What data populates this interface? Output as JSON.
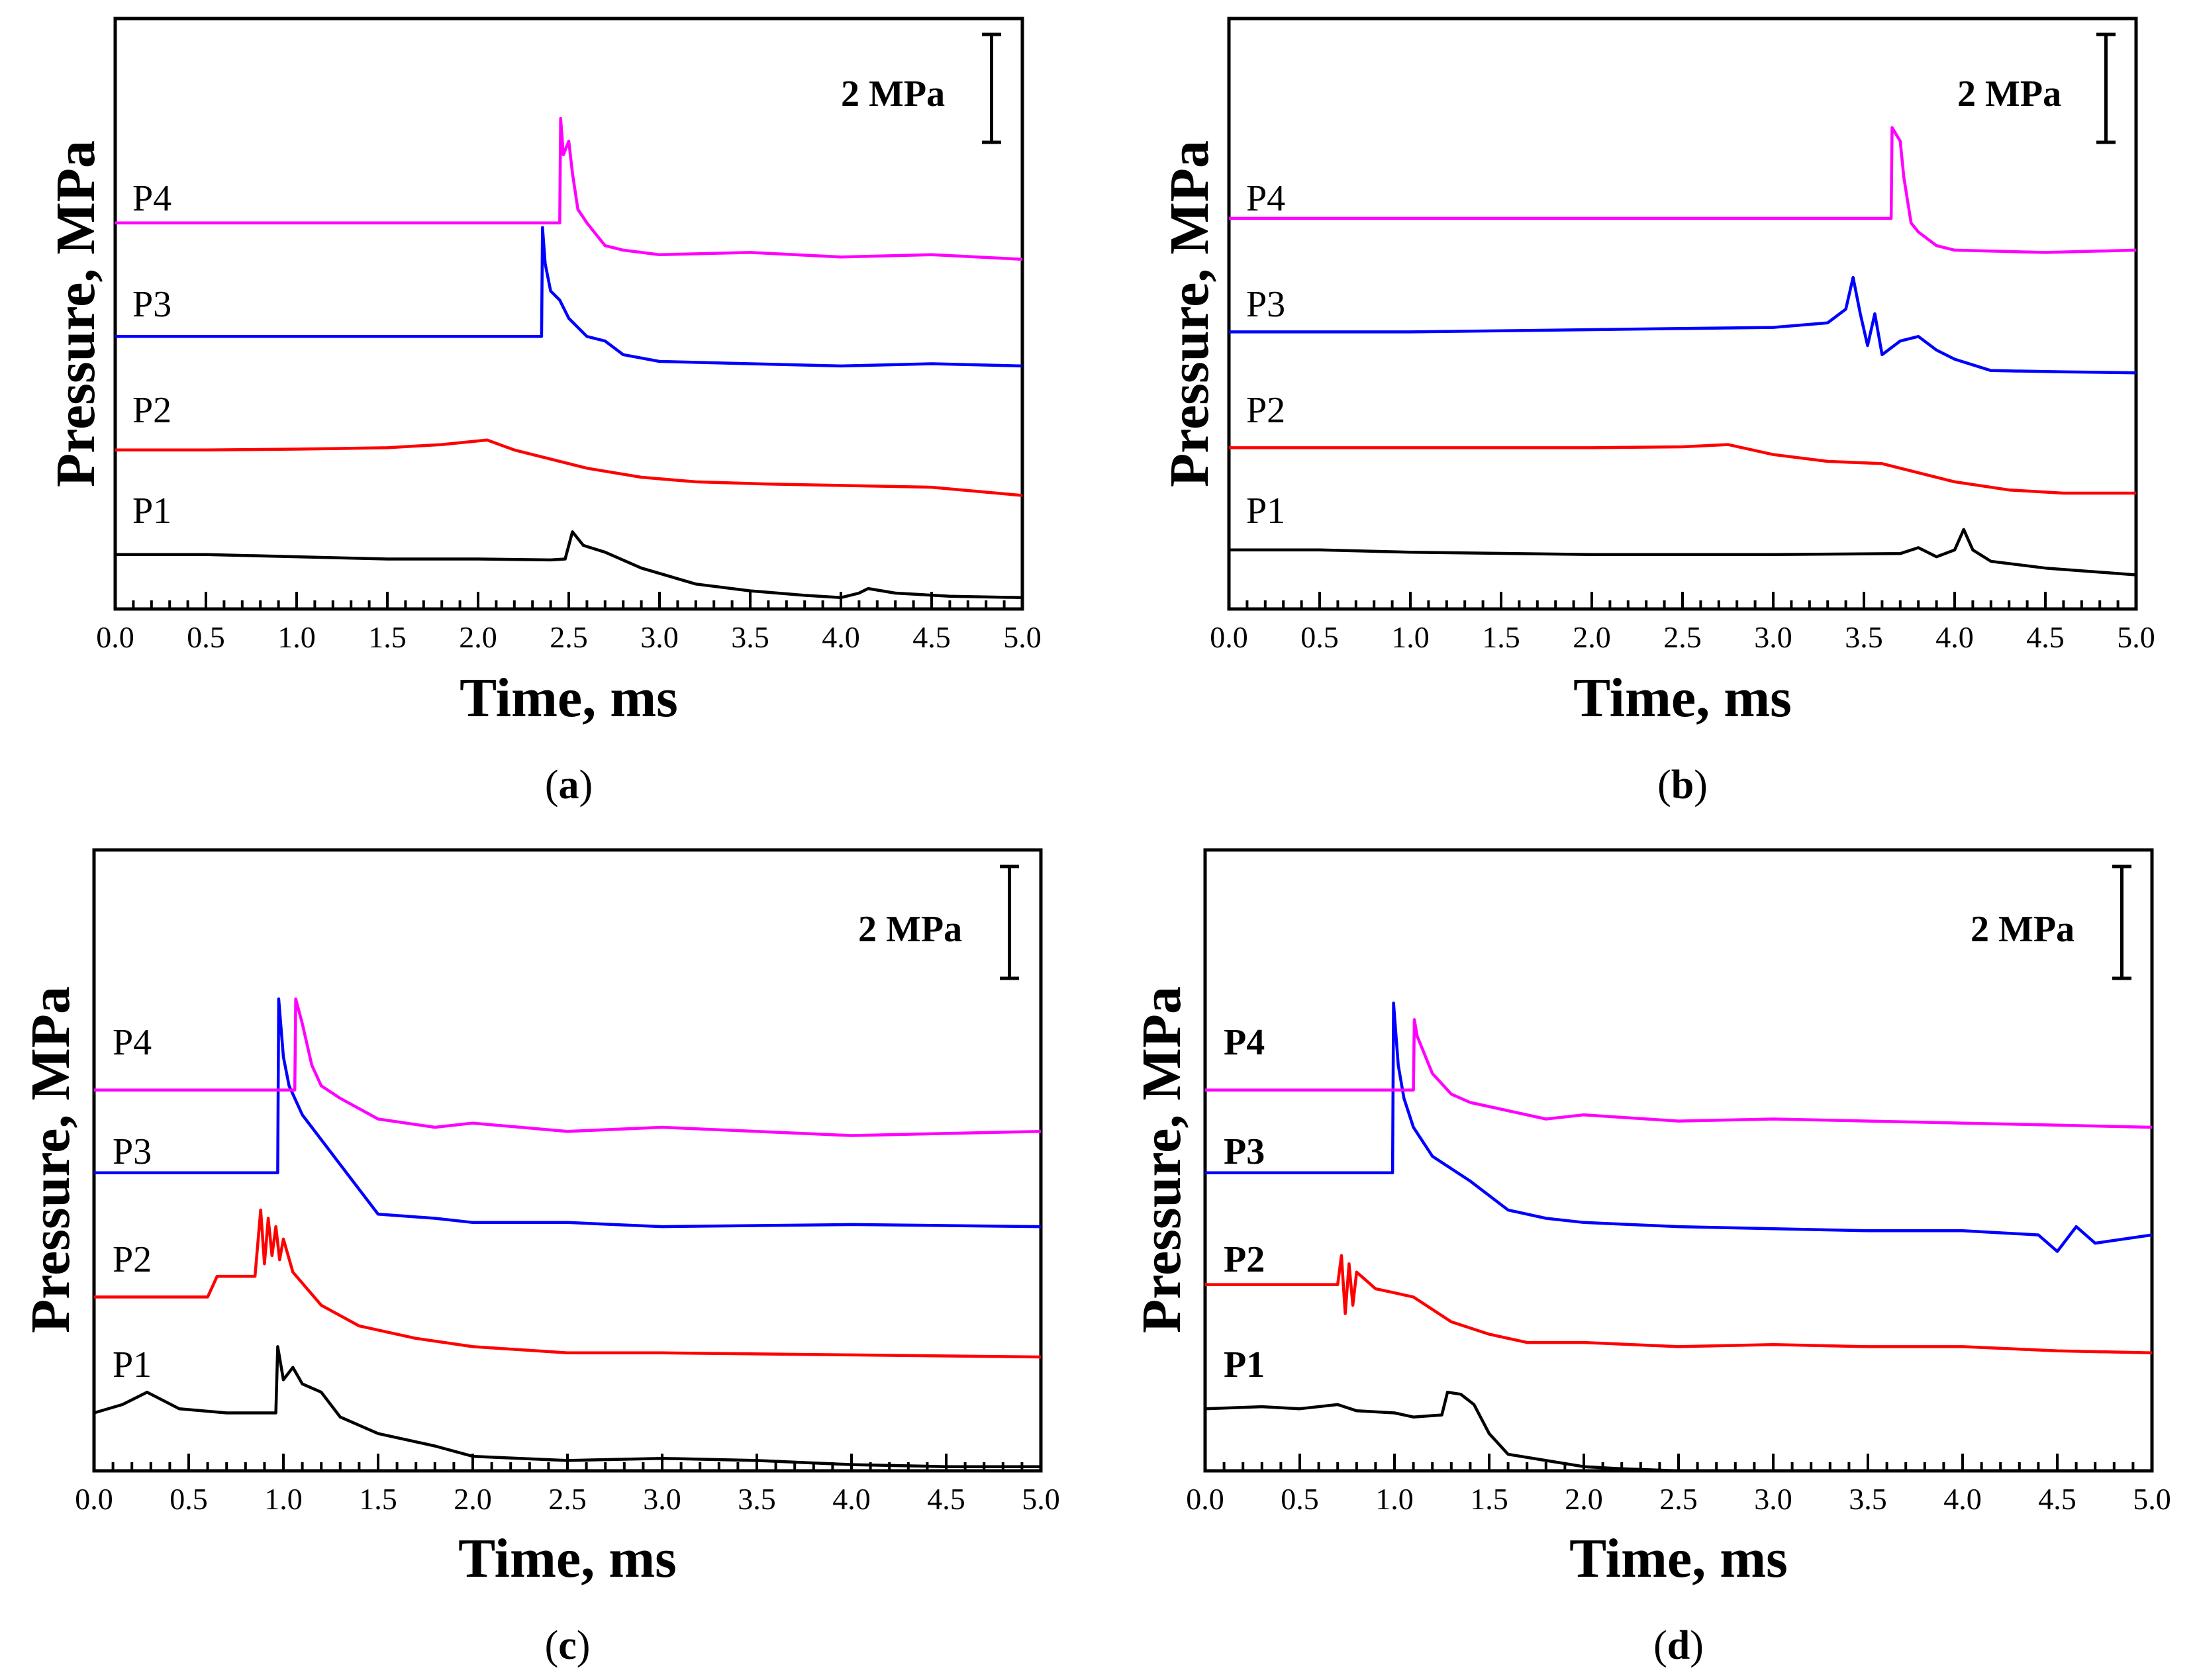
{
  "figure": {
    "colors": {
      "P1": "#000000",
      "P2": "#ff0000",
      "P3": "#0000ff",
      "P4": "#ff00ff"
    },
    "panels": [
      {
        "id": "a",
        "label_open": "(",
        "label_letter": "a",
        "label_close": ")",
        "ylabel": "Pressure, MPa",
        "xlabel": "Time, ms",
        "scale_bar": "2 MPa",
        "labels_bold": false,
        "xticks": [
          "0.0",
          "0.5",
          "1.0",
          "1.5",
          "2.0",
          "2.5",
          "3.0",
          "3.5",
          "4.0",
          "4.5",
          "5.0"
        ]
      },
      {
        "id": "b",
        "label_open": "(",
        "label_letter": "b",
        "label_close": ")",
        "ylabel": "Pressure, MPa",
        "xlabel": "Time, ms",
        "scale_bar": "2 MPa",
        "labels_bold": false,
        "xticks": [
          "0.0",
          "0.5",
          "1.0",
          "1.5",
          "2.0",
          "2.5",
          "3.0",
          "3.5",
          "4.0",
          "4.5",
          "5.0"
        ]
      },
      {
        "id": "c",
        "label_open": "(",
        "label_letter": "c",
        "label_close": ")",
        "ylabel": "Pressure, MPa",
        "xlabel": "Time, ms",
        "scale_bar": "2 MPa",
        "labels_bold": false,
        "xticks": [
          "0.0",
          "0.5",
          "1.0",
          "1.5",
          "2.0",
          "2.5",
          "3.0",
          "3.5",
          "4.0",
          "4.5",
          "5.0"
        ]
      },
      {
        "id": "d",
        "label_open": "(",
        "label_letter": "d",
        "label_close": ")",
        "ylabel": "Pressure, MPa",
        "xlabel": "Time, ms",
        "scale_bar": "2 MPa",
        "labels_bold": true,
        "xticks": [
          "0.0",
          "0.5",
          "1.0",
          "1.5",
          "2.0",
          "2.5",
          "3.0",
          "3.5",
          "4.0",
          "4.5",
          "5.0"
        ]
      }
    ]
  },
  "chart_data": [
    {
      "type": "line",
      "panel": "a",
      "xlabel": "Time, ms",
      "ylabel": "Pressure, MPa",
      "xlim": [
        0,
        5
      ],
      "ylim": [
        0,
        13
      ],
      "scale_bar_MPa": 2,
      "series": [
        {
          "name": "P1",
          "x": [
            0,
            0.5,
            1.0,
            1.5,
            2.0,
            2.4,
            2.48,
            2.52,
            2.58,
            2.7,
            2.9,
            3.2,
            3.5,
            3.8,
            4.0,
            4.1,
            4.15,
            4.3,
            4.6,
            5.0
          ],
          "y": [
            1.2,
            1.2,
            1.15,
            1.1,
            1.1,
            1.08,
            1.1,
            1.7,
            1.4,
            1.25,
            0.9,
            0.55,
            0.4,
            0.3,
            0.25,
            0.35,
            0.45,
            0.35,
            0.28,
            0.25
          ]
        },
        {
          "name": "P2",
          "x": [
            0,
            0.5,
            1.0,
            1.5,
            1.8,
            2.0,
            2.05,
            2.2,
            2.4,
            2.6,
            2.9,
            3.2,
            3.6,
            4.0,
            4.5,
            5.0
          ],
          "y": [
            3.5,
            3.5,
            3.52,
            3.55,
            3.62,
            3.7,
            3.72,
            3.5,
            3.3,
            3.1,
            2.9,
            2.8,
            2.75,
            2.72,
            2.68,
            2.5
          ]
        },
        {
          "name": "P3",
          "x": [
            0,
            1.0,
            2.0,
            2.35,
            2.355,
            2.37,
            2.4,
            2.45,
            2.5,
            2.6,
            2.7,
            2.8,
            3.0,
            3.5,
            4.0,
            4.5,
            5.0
          ],
          "y": [
            6.0,
            6.0,
            6.0,
            6.0,
            8.4,
            7.6,
            7.0,
            6.8,
            6.4,
            6.0,
            5.9,
            5.6,
            5.45,
            5.4,
            5.35,
            5.4,
            5.35
          ]
        },
        {
          "name": "P4",
          "x": [
            0,
            1.0,
            2.0,
            2.45,
            2.455,
            2.47,
            2.5,
            2.52,
            2.55,
            2.6,
            2.7,
            2.8,
            3.0,
            3.5,
            4.0,
            4.5,
            5.0
          ],
          "y": [
            8.5,
            8.5,
            8.5,
            8.5,
            10.8,
            10.0,
            10.3,
            9.6,
            8.8,
            8.5,
            8.0,
            7.9,
            7.8,
            7.85,
            7.75,
            7.8,
            7.7
          ]
        }
      ]
    },
    {
      "type": "line",
      "panel": "b",
      "xlabel": "Time, ms",
      "ylabel": "Pressure, MPa",
      "xlim": [
        0,
        5
      ],
      "ylim": [
        0,
        13
      ],
      "scale_bar_MPa": 2,
      "series": [
        {
          "name": "P1",
          "x": [
            0,
            0.5,
            1.0,
            2.0,
            3.0,
            3.7,
            3.8,
            3.9,
            4.0,
            4.05,
            4.1,
            4.2,
            4.5,
            5.0
          ],
          "y": [
            1.3,
            1.3,
            1.25,
            1.2,
            1.2,
            1.22,
            1.35,
            1.15,
            1.3,
            1.75,
            1.3,
            1.05,
            0.9,
            0.75
          ]
        },
        {
          "name": "P2",
          "x": [
            0,
            1.0,
            2.0,
            2.5,
            2.75,
            3.0,
            3.3,
            3.6,
            3.8,
            4.0,
            4.3,
            4.6,
            5.0
          ],
          "y": [
            3.55,
            3.55,
            3.55,
            3.57,
            3.62,
            3.4,
            3.25,
            3.2,
            3.0,
            2.8,
            2.62,
            2.55,
            2.55
          ]
        },
        {
          "name": "P3",
          "x": [
            0,
            1.0,
            2.0,
            3.0,
            3.3,
            3.4,
            3.44,
            3.48,
            3.52,
            3.56,
            3.6,
            3.7,
            3.8,
            3.9,
            4.0,
            4.2,
            4.6,
            5.0
          ],
          "y": [
            6.1,
            6.1,
            6.15,
            6.2,
            6.3,
            6.6,
            7.3,
            6.5,
            5.8,
            6.5,
            5.6,
            5.9,
            6.0,
            5.7,
            5.5,
            5.25,
            5.22,
            5.2
          ]
        },
        {
          "name": "P4",
          "x": [
            0,
            1.0,
            2.0,
            3.0,
            3.65,
            3.655,
            3.7,
            3.72,
            3.76,
            3.8,
            3.9,
            4.0,
            4.5,
            5.0
          ],
          "y": [
            8.6,
            8.6,
            8.6,
            8.6,
            8.6,
            10.6,
            10.3,
            9.5,
            8.5,
            8.3,
            8.0,
            7.9,
            7.85,
            7.9
          ]
        }
      ]
    },
    {
      "type": "line",
      "panel": "c",
      "xlabel": "Time, ms",
      "ylabel": "Pressure, MPa",
      "xlim": [
        0,
        5
      ],
      "ylim": [
        0,
        15
      ],
      "scale_bar_MPa": 2,
      "series": [
        {
          "name": "P1",
          "x": [
            0,
            0.15,
            0.28,
            0.45,
            0.7,
            0.96,
            0.97,
            1.0,
            1.05,
            1.1,
            1.2,
            1.3,
            1.5,
            1.8,
            2.0,
            2.5,
            3.0,
            3.5,
            4.0,
            4.5,
            5.0
          ],
          "y": [
            1.4,
            1.6,
            1.9,
            1.5,
            1.4,
            1.4,
            3.0,
            2.2,
            2.5,
            2.1,
            1.9,
            1.3,
            0.9,
            0.6,
            0.35,
            0.25,
            0.3,
            0.25,
            0.15,
            0.1,
            0.1
          ]
        },
        {
          "name": "P2",
          "x": [
            0,
            0.6,
            0.65,
            0.85,
            0.88,
            0.9,
            0.92,
            0.94,
            0.96,
            0.98,
            1.0,
            1.05,
            1.2,
            1.4,
            1.7,
            2.0,
            2.5,
            3.0,
            4.0,
            5.0
          ],
          "y": [
            4.2,
            4.2,
            4.7,
            4.7,
            6.3,
            5.0,
            6.1,
            5.2,
            5.9,
            5.1,
            5.6,
            4.8,
            4.0,
            3.5,
            3.2,
            3.0,
            2.85,
            2.85,
            2.8,
            2.75
          ]
        },
        {
          "name": "P3",
          "x": [
            0,
            0.5,
            0.97,
            0.975,
            1.0,
            1.03,
            1.1,
            1.2,
            1.3,
            1.5,
            1.8,
            2.0,
            2.5,
            3.0,
            4.0,
            5.0
          ],
          "y": [
            7.2,
            7.2,
            7.2,
            11.4,
            10.0,
            9.3,
            8.6,
            8.0,
            7.4,
            6.2,
            6.1,
            6.0,
            6.0,
            5.9,
            5.95,
            5.9
          ]
        },
        {
          "name": "P4",
          "x": [
            0,
            0.5,
            1.06,
            1.065,
            1.1,
            1.15,
            1.2,
            1.3,
            1.5,
            1.8,
            2.0,
            2.5,
            3.0,
            3.5,
            4.0,
            5.0
          ],
          "y": [
            9.2,
            9.2,
            9.2,
            11.4,
            10.8,
            9.8,
            9.3,
            9.0,
            8.5,
            8.3,
            8.4,
            8.2,
            8.3,
            8.2,
            8.1,
            8.2
          ]
        }
      ]
    },
    {
      "type": "line",
      "panel": "d",
      "xlabel": "Time, ms",
      "ylabel": "Pressure, MPa",
      "xlim": [
        0,
        5
      ],
      "ylim": [
        0,
        15
      ],
      "scale_bar_MPa": 2,
      "series": [
        {
          "name": "P1",
          "x": [
            0,
            0.3,
            0.5,
            0.7,
            0.8,
            1.0,
            1.1,
            1.25,
            1.28,
            1.35,
            1.42,
            1.5,
            1.6,
            1.8,
            2.0,
            2.2,
            2.5,
            5.0
          ],
          "y": [
            1.5,
            1.55,
            1.5,
            1.6,
            1.45,
            1.4,
            1.3,
            1.35,
            1.9,
            1.85,
            1.6,
            0.9,
            0.4,
            0.25,
            0.1,
            0.05,
            0.0,
            0.0
          ]
        },
        {
          "name": "P2",
          "x": [
            0,
            0.5,
            0.7,
            0.72,
            0.74,
            0.76,
            0.78,
            0.8,
            0.85,
            0.9,
            1.0,
            1.1,
            1.2,
            1.3,
            1.5,
            1.7,
            2.0,
            2.5,
            3.0,
            3.5,
            4.0,
            4.5,
            5.0
          ],
          "y": [
            4.5,
            4.5,
            4.5,
            5.2,
            3.8,
            5.0,
            4.0,
            4.8,
            4.6,
            4.4,
            4.3,
            4.2,
            3.9,
            3.6,
            3.3,
            3.1,
            3.1,
            3.0,
            3.05,
            3.0,
            3.0,
            2.9,
            2.85
          ]
        },
        {
          "name": "P3",
          "x": [
            0,
            0.5,
            0.99,
            0.995,
            1.02,
            1.05,
            1.1,
            1.2,
            1.4,
            1.6,
            1.8,
            2.0,
            2.5,
            3.0,
            3.5,
            4.0,
            4.4,
            4.5,
            4.6,
            4.7,
            5.0
          ],
          "y": [
            7.2,
            7.2,
            7.2,
            11.3,
            9.8,
            9.0,
            8.3,
            7.6,
            7.0,
            6.3,
            6.1,
            6.0,
            5.9,
            5.85,
            5.8,
            5.8,
            5.7,
            5.3,
            5.9,
            5.5,
            5.7
          ]
        },
        {
          "name": "P4",
          "x": [
            0,
            0.5,
            1.1,
            1.105,
            1.12,
            1.2,
            1.3,
            1.4,
            1.6,
            1.8,
            2.0,
            2.5,
            3.0,
            3.5,
            4.0,
            4.5,
            5.0
          ],
          "y": [
            9.2,
            9.2,
            9.2,
            10.9,
            10.5,
            9.6,
            9.1,
            8.9,
            8.7,
            8.5,
            8.6,
            8.45,
            8.5,
            8.45,
            8.4,
            8.35,
            8.3
          ]
        }
      ]
    }
  ]
}
